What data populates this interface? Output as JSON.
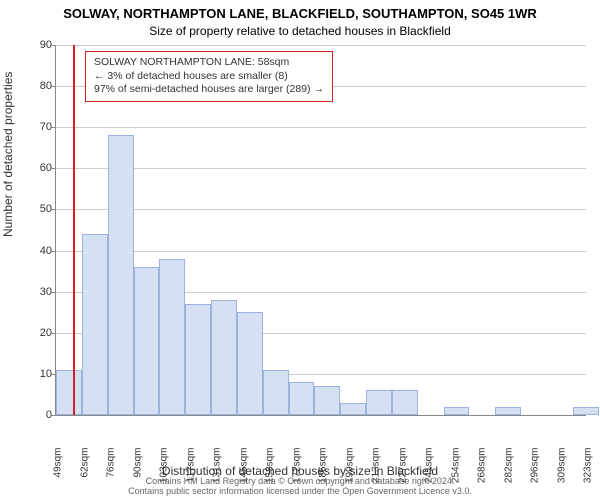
{
  "title_line1": "SOLWAY, NORTHAMPTON LANE, BLACKFIELD, SOUTHAMPTON, SO45 1WR",
  "title_line2": "Size of property relative to detached houses in Blackfield",
  "y_axis_label": "Number of detached properties",
  "x_axis_label": "Distribution of detached houses by size in Blackfield",
  "footer_line1": "Contains HM Land Registry data © Crown copyright and database right 2024.",
  "footer_line2": "Contains public sector information licensed under the Open Government Licence v3.0.",
  "legend": {
    "line1": "SOLWAY NORTHAMPTON LANE: 58sqm",
    "line2": "← 3% of detached houses are smaller (8)",
    "line3": "97% of semi-detached houses are larger (289) →"
  },
  "chart": {
    "type": "histogram",
    "ylim": [
      0,
      90
    ],
    "ytick_step": 10,
    "xlim": [
      49,
      330
    ],
    "reference_x": 58,
    "reference_color": "#d62020",
    "bar_fill": "#d6e0f5",
    "bar_stroke": "#9bb3dd",
    "grid_color": "#cccccc",
    "background_color": "#ffffff",
    "x_tick_labels": [
      "49sqm",
      "62sqm",
      "76sqm",
      "90sqm",
      "103sqm",
      "117sqm",
      "131sqm",
      "145sqm",
      "158sqm",
      "172sqm",
      "186sqm",
      "199sqm",
      "213sqm",
      "227sqm",
      "241sqm",
      "254sqm",
      "268sqm",
      "282sqm",
      "296sqm",
      "309sqm",
      "323sqm"
    ],
    "bars": [
      {
        "x": 49,
        "h": 11
      },
      {
        "x": 62.7,
        "h": 44
      },
      {
        "x": 76.4,
        "h": 68
      },
      {
        "x": 90.1,
        "h": 36
      },
      {
        "x": 103.8,
        "h": 38
      },
      {
        "x": 117.5,
        "h": 27
      },
      {
        "x": 131.2,
        "h": 28
      },
      {
        "x": 144.9,
        "h": 25
      },
      {
        "x": 158.6,
        "h": 11
      },
      {
        "x": 172.3,
        "h": 8
      },
      {
        "x": 186.0,
        "h": 7
      },
      {
        "x": 199.7,
        "h": 3
      },
      {
        "x": 213.4,
        "h": 6
      },
      {
        "x": 227.1,
        "h": 6
      },
      {
        "x": 240.8,
        "h": 0
      },
      {
        "x": 254.5,
        "h": 2
      },
      {
        "x": 268.2,
        "h": 0
      },
      {
        "x": 281.9,
        "h": 2
      },
      {
        "x": 295.6,
        "h": 0
      },
      {
        "x": 309.3,
        "h": 0
      },
      {
        "x": 323.0,
        "h": 2
      }
    ],
    "bar_width_x": 13.7
  }
}
